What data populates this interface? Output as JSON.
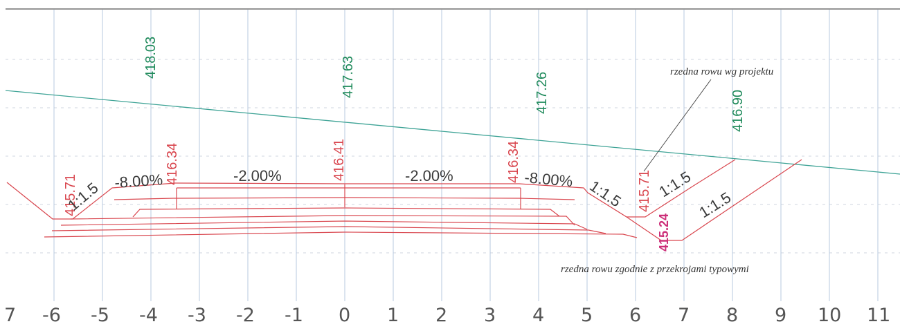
{
  "x_axis": {
    "ticks": [
      "7",
      "-6",
      "-5",
      "-4",
      "-3",
      "-2",
      "-1",
      "0",
      "1",
      "2",
      "3",
      "4",
      "5",
      "6",
      "7",
      "8",
      "9",
      "10",
      "11"
    ]
  },
  "elevations": {
    "terrain": [
      "418.03",
      "417.63",
      "417.26",
      "416.90"
    ],
    "design": [
      "415.71",
      "416.34",
      "416.41",
      "416.34",
      "415.71"
    ],
    "ditch_typical": "415.24"
  },
  "slopes": {
    "left_shoulder": "-8.00%",
    "left_lane": "-2.00%",
    "right_lane": "-2.00%",
    "right_shoulder": "-8.00%",
    "left_embankment": "1:1.5",
    "right_embankment": "1:1.5",
    "ditch_inner": "1:1.5",
    "ditch_outer": "1:1.5"
  },
  "notes": {
    "design_ditch": "rzedna rowu wg projektu",
    "typical_ditch": "rzedna rowu zgodnie z przekrojami typowymi"
  },
  "colors": {
    "terrain_line": "#3ea396",
    "design_line": "#d9474f",
    "pavement_layers": "#c7345c",
    "grid": "#b7c8df",
    "leader_line": "#4a4a4a"
  }
}
